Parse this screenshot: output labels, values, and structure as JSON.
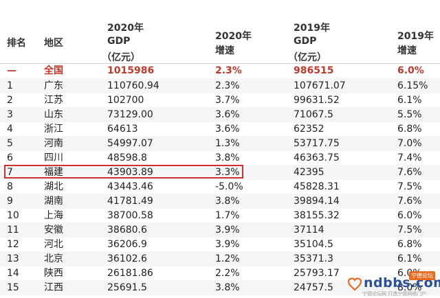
{
  "header": {
    "rank": "排名",
    "region": "地区",
    "gdp2020_line1": "2020年",
    "gdp2020_line2": "GDP",
    "gdp2020_line3": "（亿元）",
    "growth2020_line1": "2020年",
    "growth2020_line2": "增速",
    "gdp2019_line1": "2019年",
    "gdp2019_line2": "GDP",
    "gdp2019_line3": "（亿元）",
    "growth2019_line1": "2019年",
    "growth2019_line2": "增速"
  },
  "rows": [
    {
      "rank": "—",
      "region": "全国",
      "gdp2020": "1015986",
      "growth2020": "2.3%",
      "gdp2019": "986515",
      "growth2019": "6.0%"
    },
    {
      "rank": "1",
      "region": "广东",
      "gdp2020": "110760.94",
      "growth2020": "2.3%",
      "gdp2019": "107671.07",
      "growth2019": "6.15%"
    },
    {
      "rank": "2",
      "region": "江苏",
      "gdp2020": "102700",
      "growth2020": "3.7%",
      "gdp2019": "99631.52",
      "growth2019": "6.1%"
    },
    {
      "rank": "3",
      "region": "山东",
      "gdp2020": "73129.00",
      "growth2020": "3.6%",
      "gdp2019": "71067.5",
      "growth2019": "5.5%"
    },
    {
      "rank": "4",
      "region": "浙江",
      "gdp2020": "64613",
      "growth2020": "3.6%",
      "gdp2019": "62352",
      "growth2019": "6.8%"
    },
    {
      "rank": "5",
      "region": "河南",
      "gdp2020": "54997.07",
      "growth2020": "1.3%",
      "gdp2019": "53717.75",
      "growth2019": "7.0%"
    },
    {
      "rank": "6",
      "region": "四川",
      "gdp2020": "48598.8",
      "growth2020": "3.8%",
      "gdp2019": "46363.75",
      "growth2019": "7.4%"
    },
    {
      "rank": "7",
      "region": "福建",
      "gdp2020": "43903.89",
      "growth2020": "3.3%",
      "gdp2019": "42395",
      "growth2019": "7.6%"
    },
    {
      "rank": "8",
      "region": "湖北",
      "gdp2020": "43443.46",
      "growth2020": "-5.0%",
      "gdp2019": "45828.31",
      "growth2019": "7.5%"
    },
    {
      "rank": "9",
      "region": "湖南",
      "gdp2020": "41781.49",
      "growth2020": "3.8%",
      "gdp2019": "39894.14",
      "growth2019": "7.6%"
    },
    {
      "rank": "10",
      "region": "上海",
      "gdp2020": "38700.58",
      "growth2020": "1.7%",
      "gdp2019": "38155.32",
      "growth2019": "6.0%"
    },
    {
      "rank": "11",
      "region": "安徽",
      "gdp2020": "38680.6",
      "growth2020": "3.9%",
      "gdp2019": "37114",
      "growth2019": "7.5%"
    },
    {
      "rank": "12",
      "region": "河北",
      "gdp2020": "36206.9",
      "growth2020": "3.9%",
      "gdp2019": "35104.5",
      "growth2019": "6.8%"
    },
    {
      "rank": "13",
      "region": "北京",
      "gdp2020": "36102.6",
      "growth2020": "1.2%",
      "gdp2019": "35371.3",
      "growth2019": "6.1%"
    },
    {
      "rank": "14",
      "region": "陕西",
      "gdp2020": "26181.86",
      "growth2020": "2.2%",
      "gdp2019": "25793.17",
      "growth2019": "6.0%"
    },
    {
      "rank": "15",
      "region": "江西",
      "gdp2020": "25691.5",
      "growth2020": "3.8%",
      "gdp2019": "24757.5",
      "growth2019": "8.0%"
    }
  ],
  "highlight_region": "福建",
  "watermark": {
    "main": "ndbbs.com",
    "badge": "宁德论坛",
    "sub": "宁德论坛网 打造宁德网络门户"
  },
  "colors": {
    "total_row": "#c0392b",
    "highlight_border": "#d0302a",
    "watermark_blue": "#2a4f9b",
    "watermark_orange": "#e86a1f"
  }
}
